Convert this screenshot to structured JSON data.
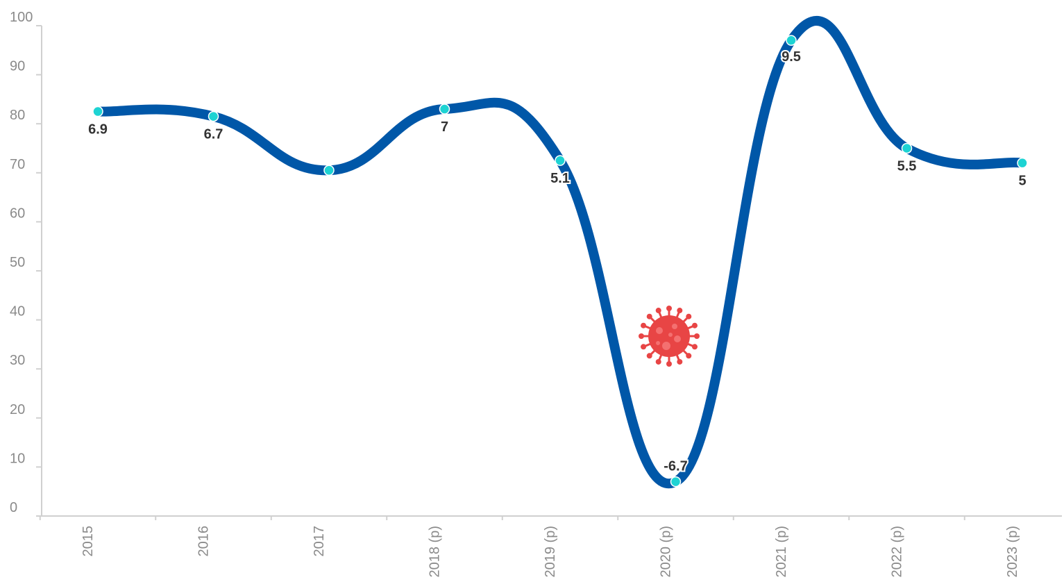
{
  "chart_data": {
    "type": "line",
    "categories": [
      "2015",
      "2016",
      "2017",
      "2018 (p)",
      "2019 (p)",
      "2020 (p)",
      "2021 (p)",
      "2022 (p)",
      "2023 (p)"
    ],
    "values": [
      82.5,
      81.5,
      70.5,
      83,
      72.5,
      7,
      97,
      75,
      72
    ],
    "data_labels": [
      "6.9",
      "6.7",
      "",
      "7",
      "5.1",
      "-6.7",
      "9.5",
      "5.5",
      "5"
    ],
    "ylim": [
      0,
      100
    ],
    "yticks": [
      0,
      10,
      20,
      30,
      40,
      50,
      60,
      70,
      80,
      90,
      100
    ],
    "grid": false,
    "legend": "none",
    "title": "",
    "xlabel": "",
    "ylabel": "",
    "colors": {
      "line": "#0057a8",
      "marker": "#1dd3d3",
      "marker_edge": "#ffffff",
      "virus": "#e84545",
      "axis": "#d0d0d0",
      "tick_text": "#8a8a8a",
      "label_text": "#333333"
    },
    "annotation_icon": "coronavirus-icon"
  }
}
